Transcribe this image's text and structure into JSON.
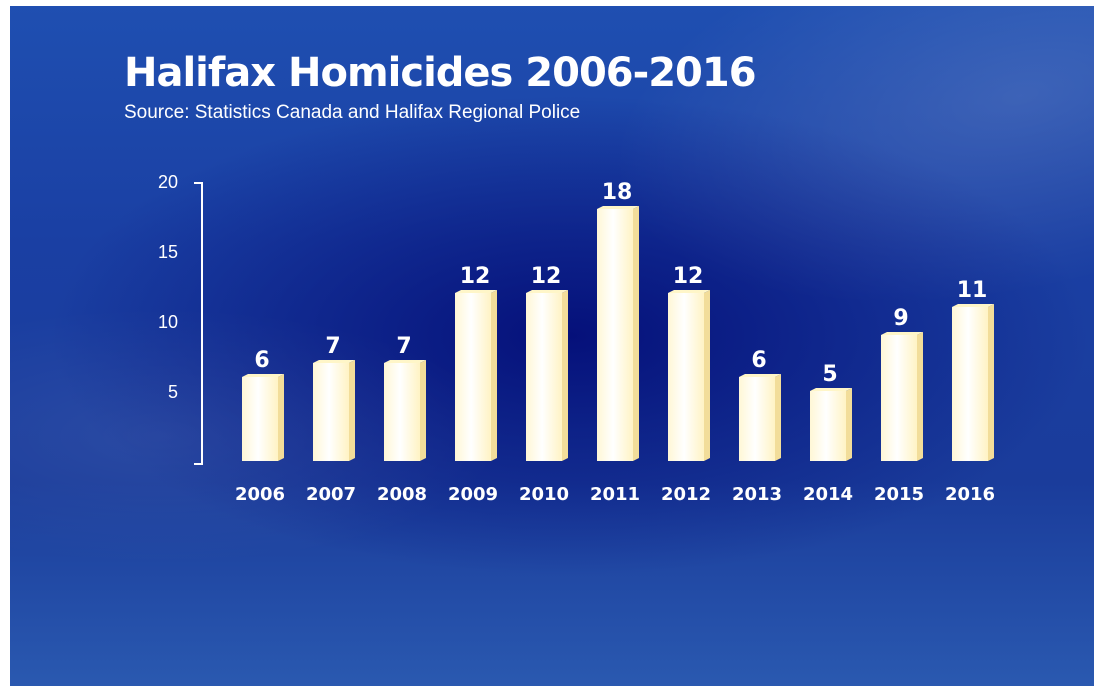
{
  "chart_data": {
    "type": "bar",
    "title": "Halifax Homicides 2006-2016",
    "subtitle": "Source: Statistics Canada and Halifax Regional Police",
    "xlabel": "",
    "ylabel": "",
    "categories": [
      "2006",
      "2007",
      "2008",
      "2009",
      "2010",
      "2011",
      "2012",
      "2013",
      "2014",
      "2015",
      "2016"
    ],
    "values": [
      6,
      7,
      7,
      12,
      12,
      18,
      12,
      6,
      5,
      9,
      11
    ],
    "data_labels": [
      "6",
      "7",
      "7",
      "12",
      "12",
      "18",
      "12",
      "6",
      "5",
      "9",
      "11"
    ],
    "yticks": [
      5,
      10,
      15,
      20
    ],
    "ytick_labels": [
      "5",
      "10",
      "15",
      "20"
    ],
    "ylim": [
      0,
      20
    ],
    "grid": false,
    "legend": "none",
    "colors": {
      "bar_front": "#fffef4",
      "bar_side": "#f2dd9a",
      "bar_top": "#fff6c8",
      "background": "#1a3fa3",
      "text": "#ffffff"
    }
  }
}
